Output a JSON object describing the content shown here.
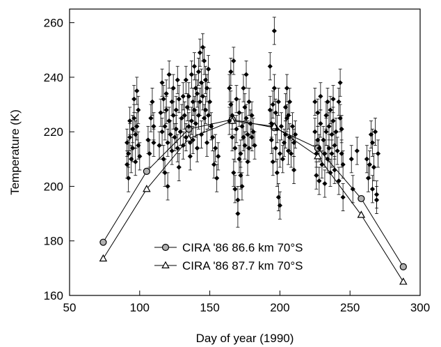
{
  "chart_data": {
    "type": "scatter",
    "title": "",
    "xlabel": "Day of year (1990)",
    "ylabel": "Temperature (K)",
    "xlim": [
      50,
      300
    ],
    "ylim": [
      160,
      265
    ],
    "xticks": [
      50,
      100,
      150,
      200,
      250,
      300
    ],
    "yticks": [
      160,
      180,
      200,
      220,
      240,
      260
    ],
    "grid": false,
    "legend_position": "lower-center",
    "colors": {
      "ink": "#000000",
      "circle_fill": "#b0b0b0",
      "triangle_fill": "#ffffff"
    },
    "series": [
      {
        "name": "CIRA '86 86.6 km 70°S",
        "marker": "circle",
        "line": true,
        "points": [
          [
            74,
            179.5
          ],
          [
            105,
            205.5
          ],
          [
            135,
            221
          ],
          [
            166,
            224.5
          ],
          [
            196,
            221.5
          ],
          [
            227,
            214
          ],
          [
            258,
            195.5
          ],
          [
            288,
            170.5
          ]
        ]
      },
      {
        "name": "CIRA '86 87.7 km 70°S",
        "marker": "triangle",
        "line": true,
        "points": [
          [
            74,
            173.5
          ],
          [
            105,
            199
          ],
          [
            135,
            217.5
          ],
          [
            166,
            224
          ],
          [
            196,
            222
          ],
          [
            227,
            211
          ],
          [
            258,
            189.5
          ],
          [
            288,
            165
          ]
        ]
      },
      {
        "name": "",
        "marker": "diamond",
        "line": false,
        "error": 5,
        "points": [
          [
            91,
            216
          ],
          [
            91,
            208
          ],
          [
            92,
            203
          ],
          [
            92,
            212
          ],
          [
            93,
            224
          ],
          [
            93,
            218
          ],
          [
            94,
            210
          ],
          [
            95,
            221
          ],
          [
            95,
            214
          ],
          [
            96,
            232
          ],
          [
            96,
            225
          ],
          [
            97,
            219
          ],
          [
            97,
            209
          ],
          [
            98,
            235
          ],
          [
            98,
            222
          ],
          [
            99,
            215
          ],
          [
            99,
            228
          ],
          [
            100,
            211
          ],
          [
            106,
            217
          ],
          [
            107,
            212
          ],
          [
            108,
            225
          ],
          [
            109,
            231
          ],
          [
            110,
            222
          ],
          [
            110,
            216
          ],
          [
            114,
            215
          ],
          [
            115,
            227
          ],
          [
            116,
            238
          ],
          [
            116,
            220
          ],
          [
            117,
            232
          ],
          [
            117,
            210
          ],
          [
            118,
            222
          ],
          [
            118,
            205
          ],
          [
            119,
            228
          ],
          [
            119,
            234
          ],
          [
            120,
            216
          ],
          [
            120,
            200
          ],
          [
            121,
            241
          ],
          [
            121,
            224
          ],
          [
            122,
            219
          ],
          [
            123,
            231
          ],
          [
            123,
            213
          ],
          [
            124,
            236
          ],
          [
            124,
            226
          ],
          [
            125,
            218
          ],
          [
            126,
            228
          ],
          [
            126,
            221
          ],
          [
            127,
            239
          ],
          [
            127,
            214
          ],
          [
            128,
            232
          ],
          [
            128,
            207
          ],
          [
            129,
            220
          ],
          [
            130,
            225
          ],
          [
            131,
            233
          ],
          [
            131,
            215
          ],
          [
            132,
            226
          ],
          [
            133,
            218
          ],
          [
            133,
            239
          ],
          [
            134,
            229
          ],
          [
            135,
            222
          ],
          [
            135,
            233
          ],
          [
            136,
            216
          ],
          [
            136,
            211
          ],
          [
            137,
            241
          ],
          [
            137,
            224
          ],
          [
            138,
            231
          ],
          [
            138,
            217
          ],
          [
            139,
            244
          ],
          [
            139,
            228
          ],
          [
            140,
            236
          ],
          [
            140,
            223
          ],
          [
            141,
            234
          ],
          [
            141,
            214
          ],
          [
            142,
            242
          ],
          [
            142,
            226
          ],
          [
            143,
            249
          ],
          [
            143,
            231
          ],
          [
            144,
            238
          ],
          [
            144,
            219
          ],
          [
            145,
            251
          ],
          [
            145,
            233
          ],
          [
            146,
            246
          ],
          [
            146,
            225
          ],
          [
            147,
            239
          ],
          [
            147,
            228
          ],
          [
            148,
            236
          ],
          [
            148,
            216
          ],
          [
            149,
            243
          ],
          [
            149,
            226
          ],
          [
            150,
            231
          ],
          [
            151,
            222
          ],
          [
            152,
            218
          ],
          [
            153,
            208
          ],
          [
            154,
            214
          ],
          [
            155,
            203
          ],
          [
            156,
            211
          ],
          [
            164,
            236
          ],
          [
            164,
            224
          ],
          [
            165,
            242
          ],
          [
            165,
            230
          ],
          [
            166,
            218
          ],
          [
            166,
            226
          ],
          [
            167,
            246
          ],
          [
            167,
            205
          ],
          [
            168,
            214
          ],
          [
            168,
            199
          ],
          [
            169,
            232
          ],
          [
            169,
            221
          ],
          [
            170,
            190
          ],
          [
            170,
            195
          ],
          [
            171,
            227
          ],
          [
            171,
            210
          ],
          [
            172,
            204
          ],
          [
            172,
            212
          ],
          [
            173,
            222
          ],
          [
            173,
            200
          ],
          [
            174,
            236
          ],
          [
            174,
            218
          ],
          [
            175,
            229
          ],
          [
            175,
            215
          ],
          [
            176,
            241
          ],
          [
            176,
            225
          ],
          [
            177,
            219
          ],
          [
            177,
            209
          ],
          [
            178,
            231
          ],
          [
            178,
            214
          ],
          [
            179,
            223
          ],
          [
            180,
            226
          ],
          [
            180,
            218
          ],
          [
            181,
            220
          ],
          [
            182,
            215
          ],
          [
            193,
            244
          ],
          [
            193,
            228
          ],
          [
            194,
            223
          ],
          [
            194,
            217
          ],
          [
            195,
            230
          ],
          [
            195,
            209
          ],
          [
            196,
            257
          ],
          [
            196,
            236
          ],
          [
            197,
            227
          ],
          [
            197,
            214
          ],
          [
            198,
            221
          ],
          [
            198,
            205
          ],
          [
            199,
            231
          ],
          [
            199,
            196
          ],
          [
            200,
            193
          ],
          [
            200,
            212
          ],
          [
            201,
            222
          ],
          [
            202,
            210
          ],
          [
            203,
            216
          ],
          [
            204,
            229
          ],
          [
            204,
            219
          ],
          [
            205,
            236
          ],
          [
            205,
            225
          ],
          [
            206,
            226
          ],
          [
            206,
            213
          ],
          [
            207,
            231
          ],
          [
            207,
            218
          ],
          [
            208,
            212
          ],
          [
            209,
            222
          ],
          [
            210,
            216
          ],
          [
            210,
            206
          ],
          [
            211,
            219
          ],
          [
            225,
            231
          ],
          [
            225,
            220
          ],
          [
            226,
            204
          ],
          [
            226,
            212
          ],
          [
            227,
            227
          ],
          [
            227,
            217
          ],
          [
            228,
            202
          ],
          [
            228,
            214
          ],
          [
            229,
            233
          ],
          [
            229,
            223
          ],
          [
            230,
            208
          ],
          [
            231,
            217
          ],
          [
            232,
            201
          ],
          [
            232,
            212
          ],
          [
            233,
            226
          ],
          [
            233,
            220
          ],
          [
            234,
            210
          ],
          [
            234,
            231
          ],
          [
            235,
            222
          ],
          [
            235,
            214
          ],
          [
            236,
            228
          ],
          [
            236,
            205
          ],
          [
            237,
            219
          ],
          [
            237,
            212
          ],
          [
            238,
            232
          ],
          [
            238,
            224
          ],
          [
            239,
            206
          ],
          [
            239,
            215
          ],
          [
            240,
            220
          ],
          [
            241,
            213
          ],
          [
            242,
            202
          ],
          [
            242,
            231
          ],
          [
            243,
            238
          ],
          [
            243,
            225
          ],
          [
            244,
            221
          ],
          [
            244,
            212
          ],
          [
            245,
            196
          ],
          [
            245,
            208
          ],
          [
            251,
            210
          ],
          [
            252,
            199
          ],
          [
            255,
            213
          ],
          [
            262,
            210
          ],
          [
            263,
            203
          ],
          [
            264,
            208
          ],
          [
            265,
            219
          ],
          [
            266,
            216
          ],
          [
            266,
            199
          ],
          [
            267,
            207
          ],
          [
            268,
            220
          ],
          [
            269,
            197
          ],
          [
            269,
            195
          ],
          [
            270,
            212
          ]
        ]
      }
    ]
  }
}
